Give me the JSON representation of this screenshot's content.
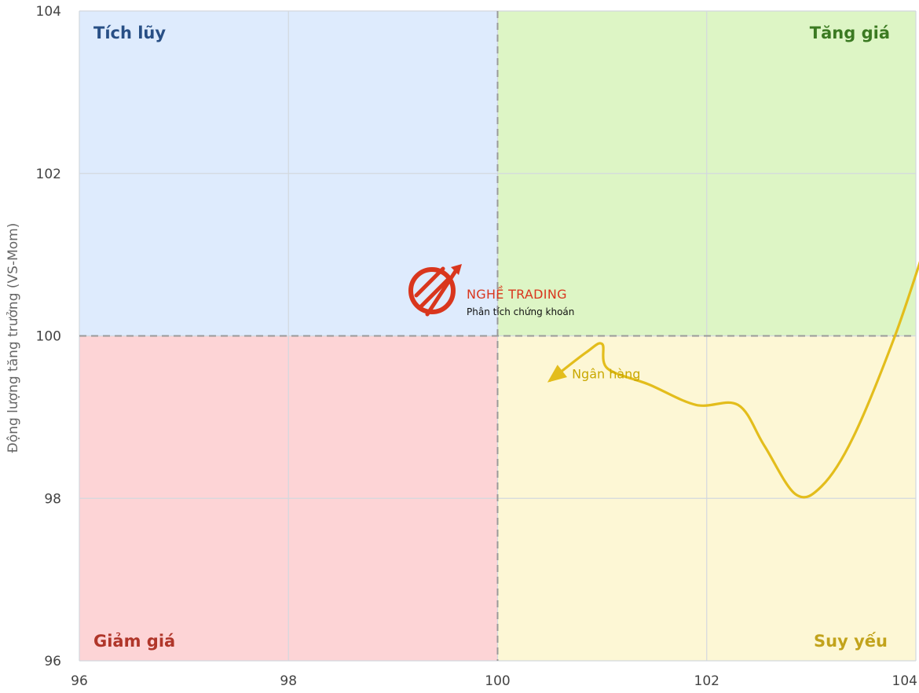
{
  "chart_data": {
    "type": "line",
    "xlim": [
      96,
      104
    ],
    "ylim": [
      96,
      104
    ],
    "x_ticks": [
      "96",
      "98",
      "100",
      "102",
      "104"
    ],
    "y_ticks": [
      "96",
      "98",
      "100",
      "102",
      "104"
    ],
    "ylabel": "Động lượng tăng trưởng (VS-Mom)",
    "center": {
      "x": 100,
      "y": 100
    },
    "quadrants": {
      "top_left": {
        "label": "Tích lũy",
        "color": "#deebfd",
        "text_color": "#284f85"
      },
      "top_right": {
        "label": "Tăng giá",
        "color": "#ddf5c5",
        "text_color": "#3b7a22"
      },
      "bottom_left": {
        "label": "Giảm giá",
        "color": "#fdd4d6",
        "text_color": "#b0362a"
      },
      "bottom_right": {
        "label": "Suy yếu",
        "color": "#fdf7d5",
        "text_color": "#c2a31c"
      }
    },
    "series": [
      {
        "name": "Ngân hàng",
        "color": "#e3bd1c",
        "x": [
          104.1,
          103.8,
          103.4,
          103.1,
          102.85,
          102.55,
          102.3,
          101.9,
          101.45,
          101.05,
          101.0,
          100.85,
          100.5
        ],
        "y": [
          101.15,
          100.0,
          98.75,
          98.15,
          98.05,
          98.65,
          99.15,
          99.15,
          99.4,
          99.6,
          99.9,
          99.8,
          99.45
        ]
      }
    ]
  },
  "watermark": {
    "title": "NGHỀ TRADING",
    "subtitle": "Phân tích chứng khoán",
    "color": "#d9361d"
  }
}
